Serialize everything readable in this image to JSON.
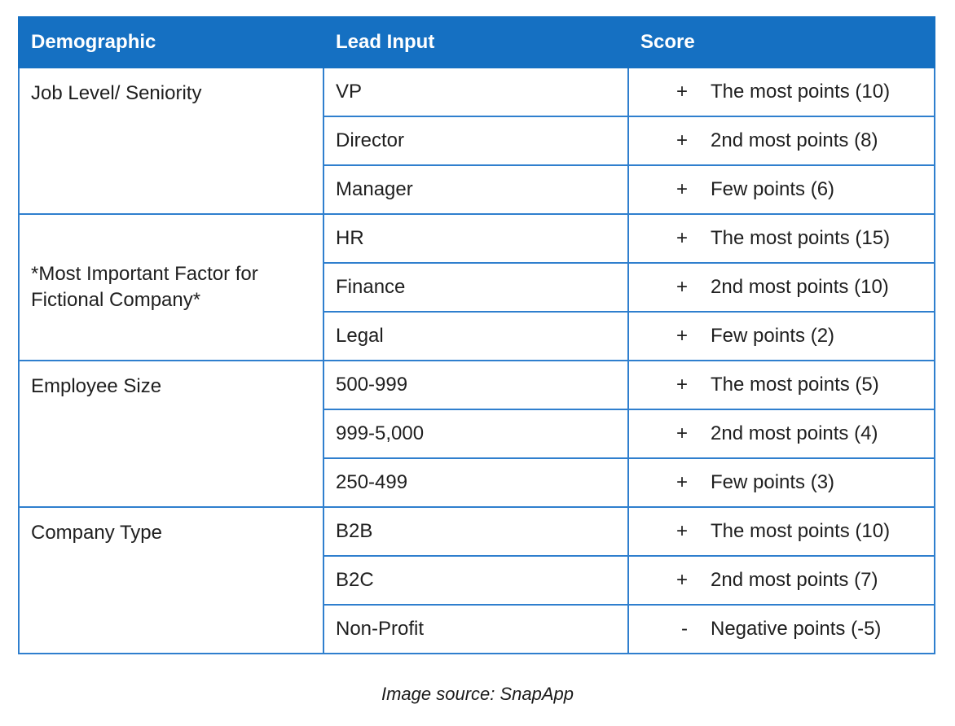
{
  "headers": {
    "demographic": "Demographic",
    "lead_input": "Lead Input",
    "score": "Score"
  },
  "groups": [
    {
      "demographic": "Job Level/ Seniority",
      "rows": [
        {
          "input": "VP",
          "sign": "+",
          "score": "The most points (10)"
        },
        {
          "input": "Director",
          "sign": "+",
          "score": "2nd most points (8)"
        },
        {
          "input": "Manager",
          "sign": "+",
          "score": "Few points (6)"
        }
      ]
    },
    {
      "demographic": "*Most Important Factor for Fictional Company*",
      "rows": [
        {
          "input": "HR",
          "sign": "+",
          "score": "The most points (15)"
        },
        {
          "input": "Finance",
          "sign": "+",
          "score": "2nd most points (10)"
        },
        {
          "input": "Legal",
          "sign": "+",
          "score": "Few points (2)"
        }
      ]
    },
    {
      "demographic": "Employee Size",
      "rows": [
        {
          "input": "500-999",
          "sign": "+",
          "score": "The most points (5)"
        },
        {
          "input": "999-5,000",
          "sign": "+",
          "score": "2nd most points (4)"
        },
        {
          "input": "250-499",
          "sign": "+",
          "score": "Few points (3)"
        }
      ]
    },
    {
      "demographic": "Company Type",
      "rows": [
        {
          "input": "B2B",
          "sign": "+",
          "score": "The most points (10)"
        },
        {
          "input": "B2C",
          "sign": "+",
          "score": "2nd most points (7)"
        },
        {
          "input": "Non-Profit",
          "sign": "-",
          "score": "Negative points (-5)"
        }
      ]
    }
  ],
  "caption": "Image source: SnapApp",
  "colors": {
    "header_bg": "#1570c2",
    "border": "#2f7fce"
  }
}
